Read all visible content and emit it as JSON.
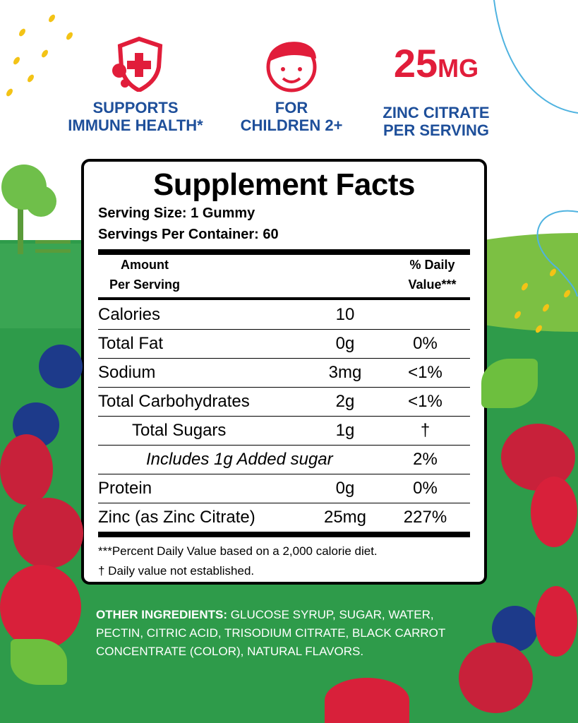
{
  "features": [
    {
      "icon": "shield-cross-icon",
      "line1": "SUPPORTS",
      "line2": "IMMUNE HEALTH*"
    },
    {
      "icon": "child-face-icon",
      "line1": "FOR",
      "line2": "CHILDREN 2+"
    },
    {
      "big_number": "25",
      "big_unit": "MG",
      "line1": "ZINC CITRATE",
      "line2": "PER SERVING"
    }
  ],
  "facts": {
    "title": "Supplement Facts",
    "serving_size": "Serving Size: 1 Gummy",
    "servings_per_container": "Servings Per Container: 60",
    "header_amount_1": "Amount",
    "header_amount_2": "Per Serving",
    "header_dv_1": "% Daily",
    "header_dv_2": "Value***",
    "rows": [
      {
        "name": "Calories",
        "amount": "10",
        "dv": ""
      },
      {
        "name": "Total Fat",
        "amount": "0g",
        "dv": "0%"
      },
      {
        "name": "Sodium",
        "amount": "3mg",
        "dv": "<1%"
      },
      {
        "name": "Total Carbohydrates",
        "amount": "2g",
        "dv": "<1%"
      },
      {
        "name": "Total Sugars",
        "amount": "1g",
        "dv": "†"
      },
      {
        "name": "Includes 1g Added sugar",
        "amount": "",
        "dv": "2%"
      },
      {
        "name": "Protein",
        "amount": "0g",
        "dv": "0%"
      },
      {
        "name": "Zinc (as Zinc Citrate)",
        "amount": "25mg",
        "dv": "227%"
      }
    ],
    "footnote_1": "***Percent Daily Value based on a 2,000 calorie diet.",
    "footnote_2": "† Daily value not established."
  },
  "other_ingredients": {
    "label": "OTHER INGREDIENTS:",
    "text": " GLUCOSE SYRUP, SUGAR, WATER, PECTIN, CITRIC ACID, TRISODIUM CITRATE, BLACK CARROT CONCENTRATE (COLOR), NATURAL FLAVORS."
  },
  "colors": {
    "green": "#2e9b4a",
    "red": "#e11d3a",
    "blue": "#1e4f9a"
  }
}
